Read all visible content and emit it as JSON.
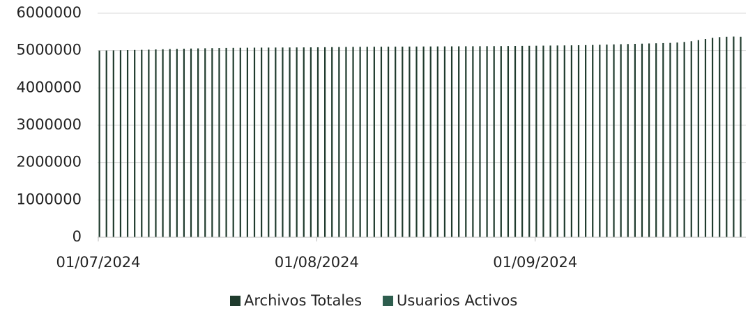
{
  "chart_data": {
    "type": "bar",
    "categories": [
      "01/07/2024",
      null,
      null,
      null,
      null,
      null,
      null,
      null,
      null,
      null,
      null,
      null,
      null,
      null,
      null,
      null,
      null,
      null,
      null,
      null,
      null,
      null,
      null,
      null,
      null,
      null,
      null,
      null,
      null,
      null,
      null,
      "01/08/2024",
      null,
      null,
      null,
      null,
      null,
      null,
      null,
      null,
      null,
      null,
      null,
      null,
      null,
      null,
      null,
      null,
      null,
      null,
      null,
      null,
      null,
      null,
      null,
      null,
      null,
      null,
      null,
      null,
      null,
      null,
      "01/09/2024",
      null,
      null,
      null,
      null,
      null,
      null,
      null,
      null,
      null,
      null,
      null,
      null,
      null,
      null,
      null,
      null,
      null,
      null,
      null,
      null,
      null,
      null,
      null,
      null,
      null,
      null,
      null,
      null,
      null
    ],
    "series": [
      {
        "name": "Archivos Totales",
        "color": "#1f3b2d",
        "values": [
          5000000,
          5002000,
          5005000,
          5008000,
          5012000,
          5016000,
          5020000,
          5025000,
          5030000,
          5035000,
          5040000,
          5045000,
          5050000,
          5054000,
          5058000,
          5061000,
          5064000,
          5067000,
          5070000,
          5072000,
          5074000,
          5076000,
          5078000,
          5079000,
          5080000,
          5081000,
          5082000,
          5083000,
          5084000,
          5085000,
          5086000,
          5088000,
          5090000,
          5092000,
          5094000,
          5096000,
          5098000,
          5100000,
          5101000,
          5102000,
          5103000,
          5104000,
          5105000,
          5106000,
          5107000,
          5108000,
          5109000,
          5110000,
          5111000,
          5112000,
          5113000,
          5114000,
          5115000,
          5116000,
          5117000,
          5118000,
          5119000,
          5120000,
          5122000,
          5124000,
          5126000,
          5128000,
          5130000,
          5132000,
          5134000,
          5136000,
          5138000,
          5140000,
          5143000,
          5146000,
          5150000,
          5155000,
          5160000,
          5165000,
          5170000,
          5175000,
          5180000,
          5185000,
          5190000,
          5195000,
          5200000,
          5205000,
          5215000,
          5230000,
          5250000,
          5280000,
          5310000,
          5340000,
          5360000,
          5370000,
          5375000,
          5370000
        ]
      },
      {
        "name": "Usuarios Activos",
        "color": "#2e5e4e",
        "values": [
          0,
          0,
          0,
          0,
          0,
          0,
          0,
          0,
          0,
          0,
          0,
          0,
          0,
          0,
          0,
          0,
          0,
          0,
          0,
          0,
          0,
          0,
          0,
          0,
          0,
          0,
          0,
          0,
          0,
          0,
          0,
          0,
          0,
          0,
          0,
          0,
          0,
          0,
          0,
          0,
          0,
          0,
          0,
          0,
          0,
          0,
          0,
          0,
          0,
          0,
          0,
          0,
          0,
          0,
          0,
          0,
          0,
          0,
          0,
          0,
          0,
          0,
          0,
          0,
          0,
          0,
          0,
          0,
          0,
          0,
          0,
          0,
          0,
          0,
          0,
          0,
          0,
          0,
          0,
          0,
          0,
          0,
          0,
          0,
          0,
          0,
          0,
          0,
          0,
          0,
          0,
          0
        ]
      }
    ],
    "ylim": [
      0,
      6000000
    ],
    "yticks": [
      0,
      1000000,
      2000000,
      3000000,
      4000000,
      5000000,
      6000000
    ],
    "grid": true,
    "legend": "bottom"
  }
}
